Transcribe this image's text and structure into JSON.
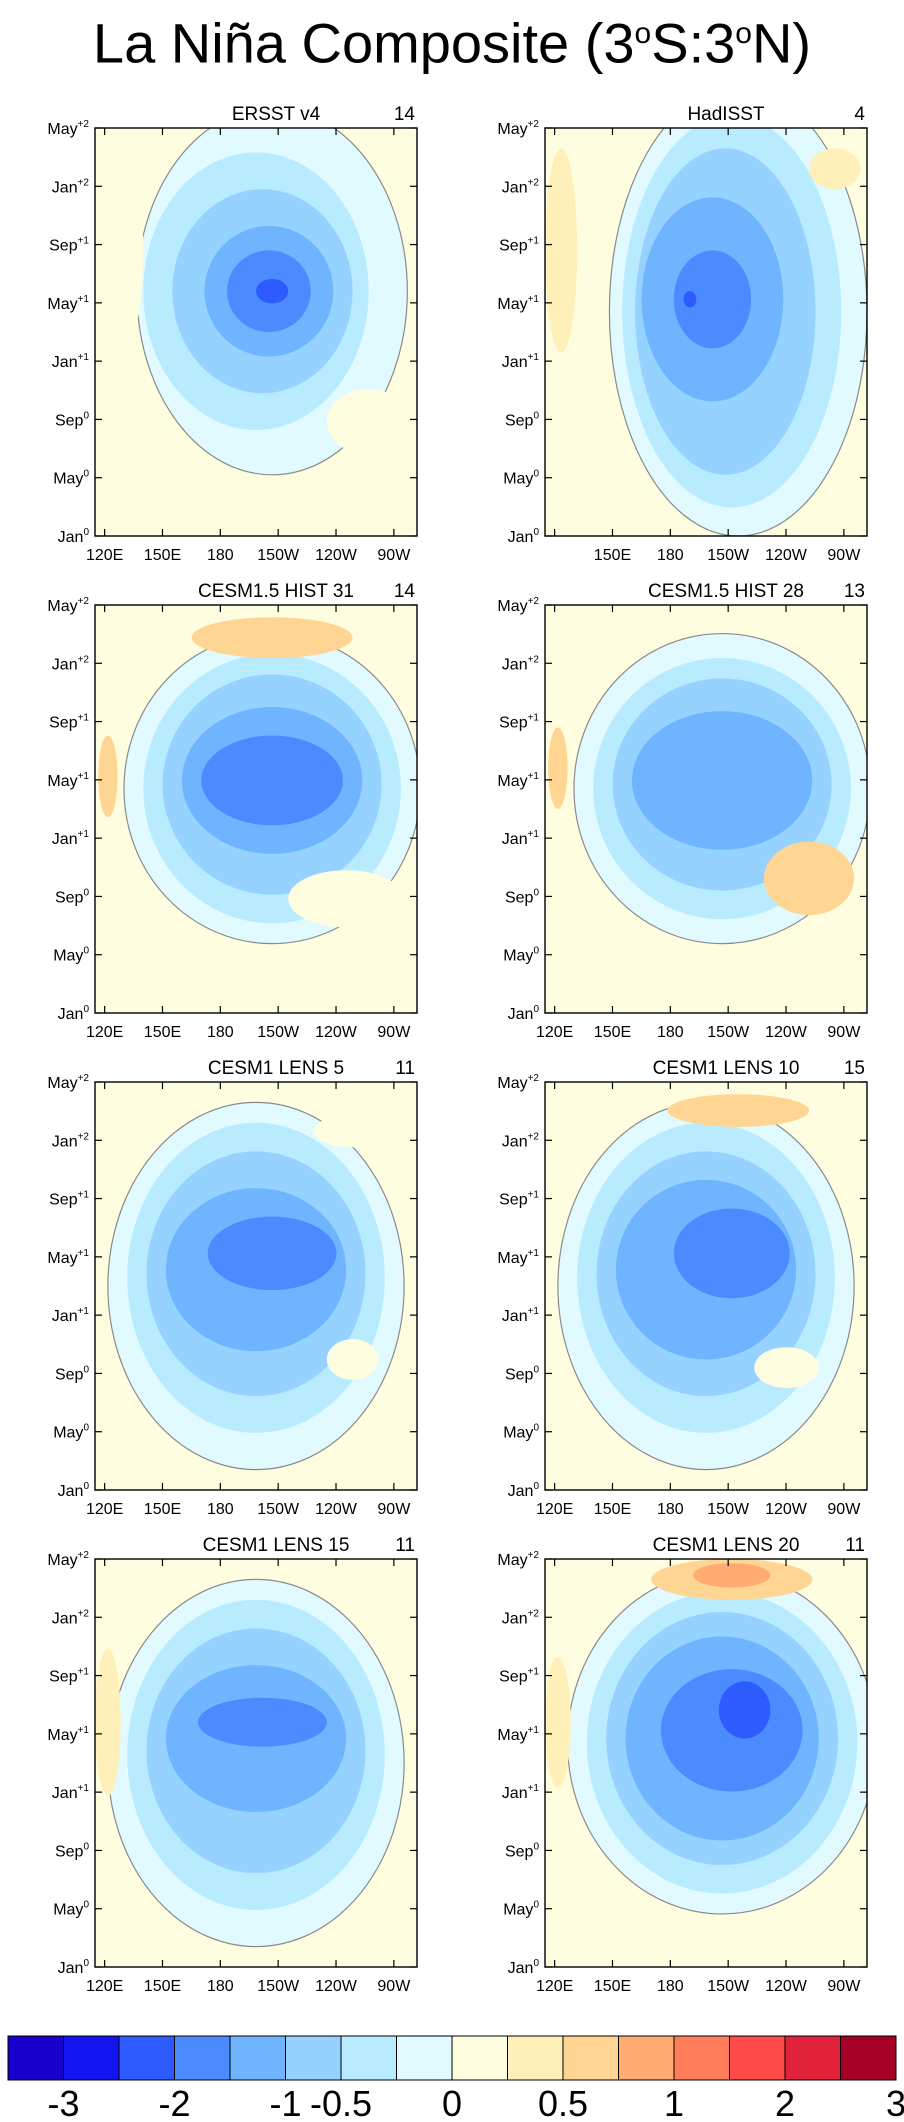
{
  "title": {
    "main": "La Niña Composite (3",
    "deg1": "o",
    "mid": "S:3",
    "deg2": "o",
    "end": "N)"
  },
  "chart_data": [
    {
      "type": "heatmap",
      "title": "ERSST v4",
      "count": "14",
      "show_x_ticks": true,
      "show_120E": true
    },
    {
      "type": "heatmap",
      "title": "HadISST",
      "count": "4",
      "show_x_ticks": true,
      "show_120E": false
    },
    {
      "type": "heatmap",
      "title": "CESM1.5 HIST 31",
      "count": "14",
      "show_x_ticks": true,
      "show_120E": true
    },
    {
      "type": "heatmap",
      "title": "CESM1.5 HIST 28",
      "count": "13",
      "show_x_ticks": true,
      "show_120E": true
    },
    {
      "type": "heatmap",
      "title": "CESM1 LENS 5",
      "count": "11",
      "show_x_ticks": true,
      "show_120E": true
    },
    {
      "type": "heatmap",
      "title": "CESM1 LENS 10",
      "count": "15",
      "show_x_ticks": true,
      "show_120E": true
    },
    {
      "type": "heatmap",
      "title": "CESM1 LENS 15",
      "count": "11",
      "show_x_ticks": true,
      "show_120E": true
    },
    {
      "type": "heatmap",
      "title": "CESM1 LENS 20",
      "count": "11",
      "show_x_ticks": true,
      "show_120E": true
    }
  ],
  "y_ticks": [
    {
      "base": "May",
      "sup": "+2"
    },
    {
      "base": "Jan",
      "sup": "+2"
    },
    {
      "base": "Sep",
      "sup": "+1"
    },
    {
      "base": "May",
      "sup": "+1"
    },
    {
      "base": "Jan",
      "sup": "+1"
    },
    {
      "base": "Sep",
      "sup": "0"
    },
    {
      "base": "May",
      "sup": "0"
    },
    {
      "base": "Jan",
      "sup": "0"
    }
  ],
  "x_ticks": [
    "120E",
    "150E",
    "180",
    "150W",
    "120W",
    "90W"
  ],
  "x_tick_lon": [
    120,
    150,
    180,
    210,
    240,
    270
  ],
  "x_range": [
    115,
    282
  ],
  "colorbar": {
    "colors": [
      "#1a00cc",
      "#1414f0",
      "#2e5bff",
      "#4a8cff",
      "#6eb4ff",
      "#96d2ff",
      "#b9ebff",
      "#e0faff",
      "#fffde0",
      "#ffefb8",
      "#ffd593",
      "#ffac73",
      "#ff7d5a",
      "#ff4a4a",
      "#e0213a",
      "#a50026"
    ],
    "labels": [
      "-3",
      "-2",
      "-1",
      "-0.5",
      "0",
      "0.5",
      "1",
      "2",
      "3"
    ]
  }
}
